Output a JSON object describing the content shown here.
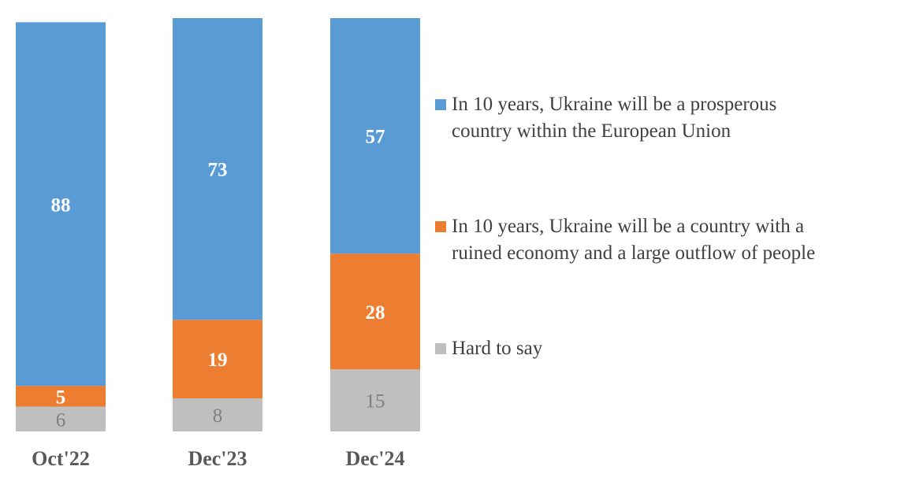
{
  "chart_data": {
    "type": "bar",
    "stacked": true,
    "categories": [
      "Oct'22",
      "Dec'23",
      "Dec'24"
    ],
    "series": [
      {
        "name": "Hard to say",
        "values": [
          6,
          8,
          15
        ],
        "color": "#BFBFBF",
        "label_color": "#7F7F7F"
      },
      {
        "name": "In 10 years, Ukraine will be a country with a ruined economy and a large outflow of people",
        "values": [
          5,
          19,
          28
        ],
        "color": "#ED7D31",
        "label_color": "#FFFFFF"
      },
      {
        "name": "In 10 years, Ukraine will be a prosperous country within the European Union",
        "values": [
          88,
          73,
          57
        ],
        "color": "#5B9BD5",
        "label_color": "#FFFFFF"
      }
    ],
    "ylim": [
      0,
      100
    ],
    "title": "",
    "xlabel": "",
    "ylabel": "",
    "legend_position": "right",
    "grid": false
  },
  "legend": {
    "items": [
      {
        "lines": [
          "In 10 years, Ukraine will be a prosperous",
          "country within the European Union"
        ],
        "color": "#5B9BD5"
      },
      {
        "lines": [
          "In 10 years, Ukraine will be a country with a",
          "ruined economy and a large outflow of people"
        ],
        "color": "#ED7D31"
      },
      {
        "lines": [
          "Hard to say"
        ],
        "color": "#BFBFBF"
      }
    ]
  }
}
